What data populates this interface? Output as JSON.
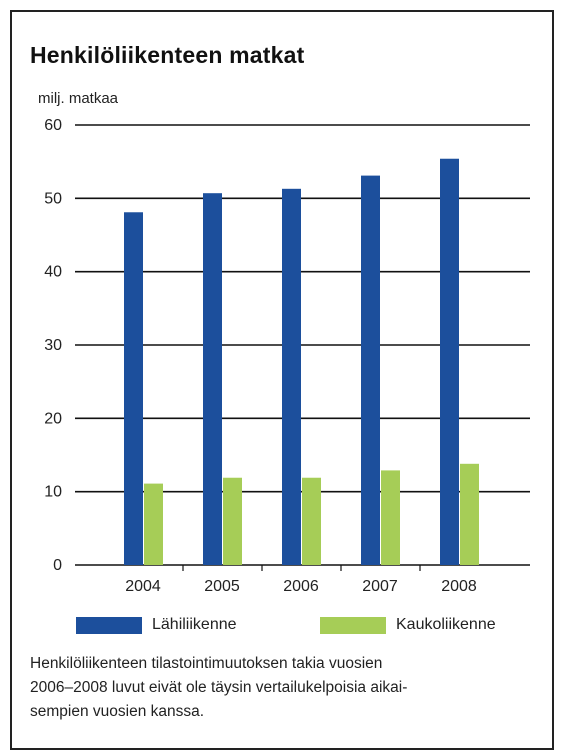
{
  "chart_data": {
    "type": "bar",
    "title": "Henkilöliikenteen matkat",
    "ylabel": "milj. matkaa",
    "xlabel": "",
    "ylim": [
      0,
      60
    ],
    "yticks": [
      0,
      10,
      20,
      30,
      40,
      50,
      60
    ],
    "categories": [
      "2004",
      "2005",
      "2006",
      "2007",
      "2008"
    ],
    "series": [
      {
        "name": "Lähiliikenne",
        "color": "#1c4f9c",
        "values": [
          48.1,
          50.7,
          51.3,
          53.1,
          55.4
        ]
      },
      {
        "name": "Kaukoliikenne",
        "color": "#a6cd57",
        "values": [
          11.1,
          11.9,
          11.9,
          12.9,
          13.8
        ]
      }
    ],
    "grid": true,
    "legend": "bottom"
  },
  "footnote": {
    "lines": [
      "Henkilöliikenteen tilastointimuutoksen takia vuosien",
      "2006–2008 luvut eivät ole täysin vertailukelpoisia aikai-",
      "sempien vuosien kanssa."
    ]
  }
}
